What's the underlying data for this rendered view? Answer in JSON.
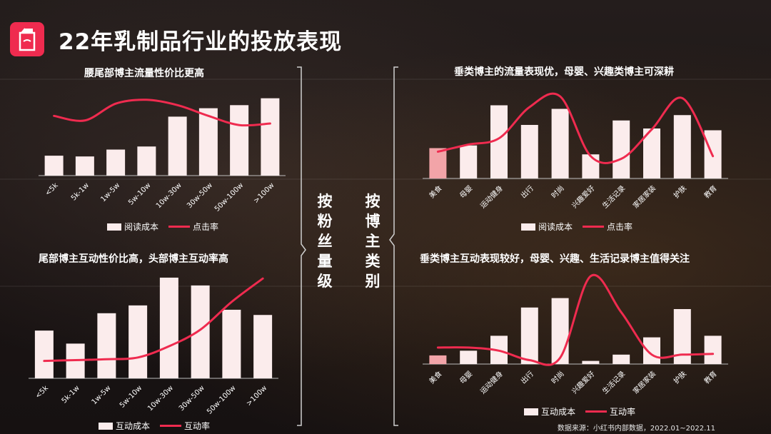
{
  "page_title": "22年乳制品行业的投放表现",
  "vertical_labels": {
    "left": "按粉丝量级",
    "right": "按博主类别"
  },
  "colors": {
    "bar": "#fbecec",
    "bar_highlight": "#f2a4a8",
    "line": "#ef2b4f",
    "accent": "#ef2b4f"
  },
  "icons": {
    "logo": "milk-carton-icon"
  },
  "source": "数据来源：小红书内部数据，2022.01~2022.11",
  "chart_data": [
    {
      "type": "bar",
      "title": "腰尾部博主流量性价比更高",
      "categories": [
        "<5k",
        "5k-1w",
        "1w-5w",
        "5w-10w",
        "10w-30w",
        "30w-50w",
        "50w-100w",
        ">100w"
      ],
      "series": [
        {
          "name": "阅读成本",
          "type": "bar",
          "values": [
            26,
            25,
            34,
            38,
            77,
            88,
            92,
            101
          ]
        },
        {
          "name": "点击率",
          "type": "line",
          "values": [
            78,
            72,
            94,
            99,
            92,
            78,
            66,
            68
          ]
        }
      ],
      "ylim": [
        0,
        110
      ],
      "legend": "bottom"
    },
    {
      "type": "bar",
      "title": "尾部博主互动性价比高，头部博主互动率高",
      "categories": [
        "<5k",
        "5k-1w",
        "1w-5w",
        "5w-10w",
        "10w-30w",
        "30w-50w",
        "50w-100w",
        ">100w"
      ],
      "series": [
        {
          "name": "互动成本",
          "type": "bar",
          "values": [
            55,
            40,
            75,
            84,
            116,
            107,
            79,
            73
          ]
        },
        {
          "name": "互动率",
          "type": "line",
          "values": [
            20,
            21,
            22,
            24,
            37,
            56,
            88,
            115
          ]
        }
      ],
      "ylim": [
        0,
        125
      ],
      "legend": "bottom"
    },
    {
      "type": "bar",
      "title": "垂类博主的流量表现优，母婴、兴趣类博主可深耕",
      "categories": [
        "美食",
        "母婴",
        "运动健身",
        "出行",
        "时尚",
        "兴趣爱好",
        "生活记录",
        "家居家装",
        "护肤",
        "教育"
      ],
      "series": [
        {
          "name": "阅读成本",
          "type": "bar",
          "values": [
            34,
            37,
            82,
            60,
            78,
            27,
            65,
            56,
            71,
            54
          ]
        },
        {
          "name": "点击率",
          "type": "line",
          "values": [
            30,
            38,
            45,
            80,
            92,
            25,
            22,
            55,
            90,
            25
          ]
        }
      ],
      "highlight_index": 0,
      "ylim": [
        0,
        100
      ],
      "legend": "bottom"
    },
    {
      "type": "bar",
      "title": "垂类博主互动表现较好，母婴、兴趣、生活记录博主值得关注",
      "categories": [
        "美食",
        "母婴",
        "运动健身",
        "出行",
        "时尚",
        "兴趣爱好",
        "生活记录",
        "家居家装",
        "护肤",
        "教育"
      ],
      "series": [
        {
          "name": "互动成本",
          "type": "bar",
          "values": [
            11,
            17,
            36,
            72,
            84,
            4,
            12,
            34,
            70,
            36
          ]
        },
        {
          "name": "互动率",
          "type": "line",
          "values": [
            21,
            21,
            17,
            5,
            8,
            112,
            66,
            12,
            12,
            13
          ]
        }
      ],
      "highlight_index": 0,
      "ylim": [
        0,
        120
      ],
      "legend": "bottom"
    }
  ]
}
